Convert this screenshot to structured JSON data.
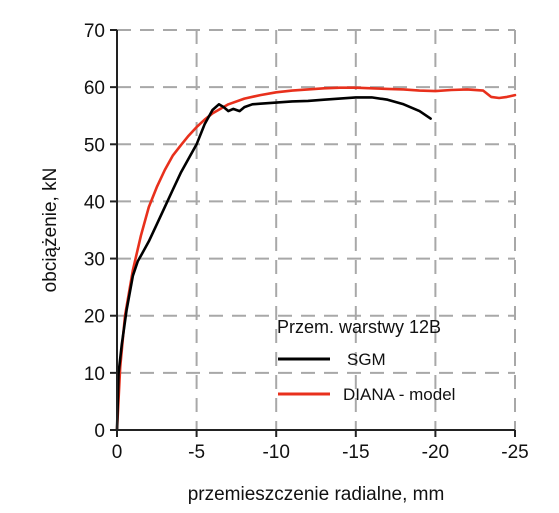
{
  "chart_data": {
    "type": "line",
    "title": "",
    "xlabel": "przemieszczenie radialne, mm",
    "ylabel": "obciążenie, kN",
    "xlim": [
      0,
      -25
    ],
    "ylim": [
      0,
      70
    ],
    "x_ticks": [
      0,
      -5,
      -10,
      -15,
      -20,
      -25
    ],
    "y_ticks": [
      0,
      10,
      20,
      30,
      40,
      50,
      60,
      70
    ],
    "x_tick_labels": [
      "0",
      "-5",
      "-10",
      "-15",
      "-20",
      "-25"
    ],
    "y_tick_labels": [
      "0",
      "10",
      "20",
      "30",
      "40",
      "50",
      "60",
      "70"
    ],
    "grid": true,
    "grid_style": "dashed",
    "legend": {
      "title": "Przem. warstwy 12B",
      "position": "bottom-right"
    },
    "series": [
      {
        "name": "SGM",
        "color": "#000000",
        "x": [
          0,
          -0.1,
          -0.3,
          -0.6,
          -1.0,
          -1.3,
          -1.6,
          -2.0,
          -2.5,
          -3.0,
          -3.5,
          -4.0,
          -4.5,
          -5.0,
          -5.5,
          -6.0,
          -6.4,
          -6.7,
          -7.0,
          -7.3,
          -7.7,
          -8.0,
          -8.5,
          -9.0,
          -10.0,
          -11.0,
          -12.0,
          -13.0,
          -14.0,
          -15.0,
          -16.0,
          -17.0,
          -18.0,
          -19.0,
          -19.7
        ],
        "y": [
          0,
          10,
          15,
          21,
          27,
          29.5,
          31,
          33,
          36,
          39,
          42,
          45,
          47.5,
          50,
          53.5,
          56,
          57,
          56.5,
          55.8,
          56.2,
          55.8,
          56.5,
          57,
          57.1,
          57.3,
          57.5,
          57.6,
          57.8,
          58,
          58.2,
          58.2,
          57.8,
          57,
          55.8,
          54.5
        ]
      },
      {
        "name": "DIANA - model",
        "color": "#e8301c",
        "x": [
          0,
          -0.2,
          -0.5,
          -1.0,
          -1.5,
          -2.0,
          -2.5,
          -3.0,
          -3.5,
          -4.0,
          -4.5,
          -5.0,
          -5.5,
          -6.0,
          -7.0,
          -8.0,
          -9.0,
          -10.0,
          -11.0,
          -12.0,
          -13.0,
          -14.0,
          -15.0,
          -16.0,
          -17.0,
          -18.0,
          -19.0,
          -20.0,
          -21.0,
          -22.0,
          -23.0,
          -23.5,
          -24.0,
          -24.5,
          -25.0
        ],
        "y": [
          0,
          11,
          20,
          28,
          34,
          39,
          42.5,
          45.5,
          48,
          49.8,
          51.5,
          53,
          54.3,
          55.4,
          57,
          58,
          58.6,
          59.1,
          59.4,
          59.6,
          59.8,
          59.9,
          59.9,
          59.8,
          59.7,
          59.6,
          59.4,
          59.3,
          59.5,
          59.6,
          59.4,
          58.3,
          58.1,
          58.3,
          58.6
        ]
      }
    ]
  }
}
